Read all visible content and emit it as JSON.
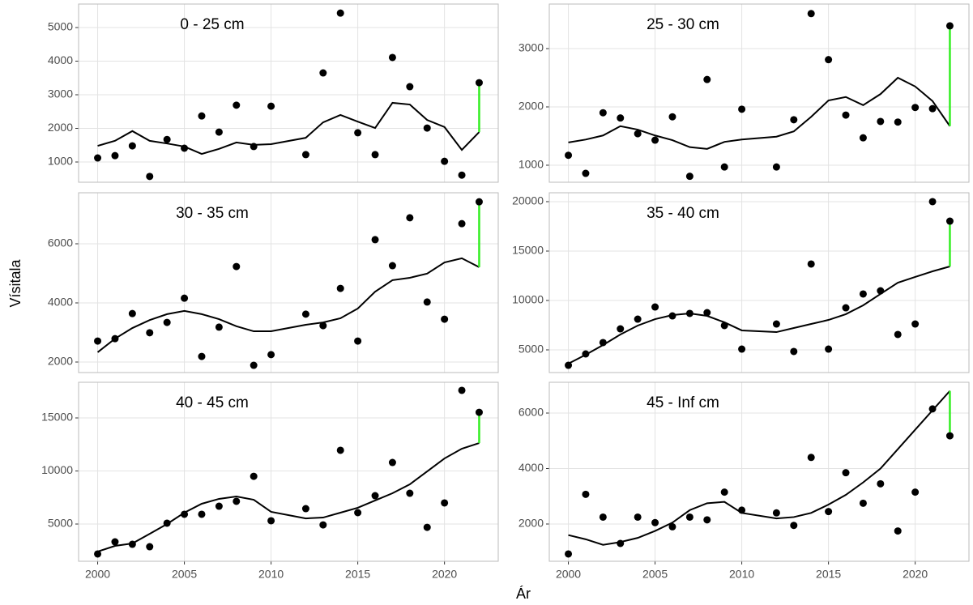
{
  "x_label": "Ár",
  "y_label": "Vísitala",
  "chart_data": [
    {
      "type": "scatter_fit",
      "title": "0 - 25 cm",
      "x": [
        2000,
        2001,
        2002,
        2003,
        2004,
        2005,
        2006,
        2007,
        2008,
        2009,
        2010,
        2012,
        2013,
        2014,
        2015,
        2016,
        2017,
        2018,
        2019,
        2020,
        2021,
        2022
      ],
      "values": [
        1120,
        1190,
        1480,
        570,
        1670,
        1410,
        2370,
        1890,
        2690,
        1460,
        2660,
        1220,
        3650,
        5430,
        1870,
        1220,
        4110,
        3240,
        2010,
        1020,
        610,
        3360
      ],
      "fit": [
        1480,
        1630,
        1920,
        1630,
        1550,
        1460,
        1240,
        1390,
        1580,
        1510,
        1530,
        1720,
        2180,
        2400,
        2200,
        2010,
        2760,
        2710,
        2250,
        2040,
        1360,
        1890
      ],
      "xlim": [
        1998.9,
        2023.1
      ],
      "xticks": [
        2000,
        2005,
        2010,
        2015,
        2020
      ],
      "ylim": [
        398,
        5699
      ],
      "yticks": [
        1000,
        2000,
        3000,
        4000,
        5000
      ],
      "point_color": "#000000",
      "line_color": "#000000",
      "diff_color": "#33ee22",
      "grid": true
    },
    {
      "type": "scatter_fit",
      "title": "25 - 30 cm",
      "x": [
        2000,
        2001,
        2002,
        2003,
        2004,
        2005,
        2006,
        2007,
        2008,
        2009,
        2010,
        2012,
        2013,
        2014,
        2015,
        2016,
        2017,
        2018,
        2019,
        2020,
        2021,
        2022
      ],
      "values": [
        1170,
        860,
        1900,
        1810,
        1540,
        1430,
        1830,
        810,
        2470,
        970,
        1960,
        970,
        1780,
        3600,
        2810,
        1860,
        1470,
        1750,
        1740,
        1990,
        1970,
        3390
      ],
      "fit": [
        1390,
        1440,
        1510,
        1670,
        1610,
        1510,
        1430,
        1310,
        1280,
        1400,
        1440,
        1490,
        1580,
        1830,
        2110,
        2170,
        2030,
        2220,
        2500,
        2350,
        2100,
        1670
      ],
      "xlim": [
        1998.9,
        2023.1
      ],
      "xticks": [
        2000,
        2005,
        2010,
        2015,
        2020
      ],
      "ylim": [
        708,
        3764
      ],
      "yticks": [
        1000,
        2000,
        3000
      ],
      "point_color": "#000000",
      "line_color": "#000000",
      "diff_color": "#33ee22",
      "grid": true
    },
    {
      "type": "scatter_fit",
      "title": "30 - 35 cm",
      "x": [
        2000,
        2001,
        2002,
        2003,
        2004,
        2005,
        2006,
        2007,
        2008,
        2009,
        2010,
        2012,
        2013,
        2014,
        2015,
        2016,
        2017,
        2018,
        2019,
        2020,
        2021,
        2022
      ],
      "values": [
        2710,
        2790,
        3640,
        2990,
        3340,
        4160,
        2190,
        3180,
        5230,
        1890,
        2250,
        3620,
        3230,
        4490,
        2710,
        6140,
        5260,
        6880,
        4030,
        3450,
        6680,
        7420
      ],
      "fit": [
        2330,
        2790,
        3150,
        3420,
        3620,
        3730,
        3620,
        3450,
        3210,
        3040,
        3040,
        3260,
        3340,
        3480,
        3810,
        4380,
        4770,
        4850,
        4990,
        5370,
        5510,
        5210
      ],
      "xlim": [
        1998.9,
        2023.1
      ],
      "xticks": [
        2000,
        2005,
        2010,
        2015,
        2020
      ],
      "ylim": [
        1644,
        7726
      ],
      "yticks": [
        2000,
        4000,
        6000
      ],
      "point_color": "#000000",
      "line_color": "#000000",
      "diff_color": "#33ee22",
      "grid": true
    },
    {
      "type": "scatter_fit",
      "title": "35 - 40 cm",
      "x": [
        2000,
        2001,
        2002,
        2003,
        2004,
        2005,
        2006,
        2007,
        2008,
        2009,
        2010,
        2012,
        2013,
        2014,
        2015,
        2016,
        2017,
        2018,
        2019,
        2020,
        2021,
        2022
      ],
      "values": [
        3440,
        4590,
        5740,
        7130,
        8110,
        9340,
        8440,
        8690,
        8770,
        7460,
        5080,
        7620,
        4840,
        13690,
        5080,
        9260,
        10660,
        10980,
        6560,
        7620,
        20000,
        18030
      ],
      "fit": [
        3610,
        4510,
        5490,
        6560,
        7460,
        8110,
        8520,
        8690,
        8440,
        7790,
        6970,
        6800,
        7210,
        7620,
        8030,
        8610,
        9510,
        10660,
        11800,
        12380,
        12950,
        13440
      ],
      "xlim": [
        1998.9,
        2023.1
      ],
      "xticks": [
        2000,
        2005,
        2010,
        2015,
        2020
      ],
      "ylim": [
        2705,
        20900
      ],
      "yticks": [
        5000,
        10000,
        15000,
        20000
      ],
      "point_color": "#000000",
      "line_color": "#000000",
      "diff_color": "#33ee22",
      "grid": true
    },
    {
      "type": "scatter_fit",
      "title": "40 - 45 cm",
      "x": [
        2000,
        2001,
        2002,
        2003,
        2004,
        2005,
        2006,
        2007,
        2008,
        2009,
        2010,
        2012,
        2013,
        2014,
        2015,
        2016,
        2017,
        2018,
        2019,
        2020,
        2021,
        2022
      ],
      "values": [
        2180,
        3320,
        3090,
        2860,
        5080,
        5920,
        5920,
        6680,
        7140,
        9500,
        5310,
        6450,
        4920,
        11950,
        6070,
        7670,
        10800,
        7900,
        4690,
        6990,
        17600,
        15530
      ],
      "fit": [
        2400,
        2940,
        3170,
        4080,
        5000,
        6070,
        6910,
        7370,
        7600,
        7290,
        6150,
        5530,
        5610,
        6070,
        6530,
        7220,
        7900,
        8740,
        9960,
        11180,
        12100,
        12630
      ],
      "xlim": [
        1998.9,
        2023.1
      ],
      "xticks": [
        2000,
        2005,
        2010,
        2015,
        2020
      ],
      "ylim": [
        1490,
        18360
      ],
      "yticks": [
        5000,
        10000,
        15000
      ],
      "point_color": "#000000",
      "line_color": "#000000",
      "diff_color": "#33ee22",
      "grid": true
    },
    {
      "type": "scatter_fit",
      "title": "45 - Inf cm",
      "x": [
        2000,
        2001,
        2002,
        2003,
        2004,
        2005,
        2006,
        2007,
        2008,
        2009,
        2010,
        2012,
        2013,
        2014,
        2015,
        2016,
        2017,
        2018,
        2019,
        2020,
        2021,
        2022
      ],
      "values": [
        920,
        3070,
        2250,
        1300,
        2250,
        2050,
        1900,
        2250,
        2150,
        3150,
        2500,
        2400,
        1950,
        4400,
        2450,
        3850,
        2750,
        3450,
        1750,
        3150,
        6150,
        5180
      ],
      "fit": [
        1600,
        1450,
        1250,
        1350,
        1500,
        1750,
        2050,
        2500,
        2750,
        2800,
        2400,
        2200,
        2250,
        2400,
        2700,
        3050,
        3500,
        4000,
        4700,
        5400,
        6100,
        6800
      ],
      "xlim": [
        1998.9,
        2023.1
      ],
      "xticks": [
        2000,
        2005,
        2010,
        2015,
        2020
      ],
      "ylim": [
        657,
        7110
      ],
      "yticks": [
        2000,
        4000,
        6000
      ],
      "point_color": "#000000",
      "line_color": "#000000",
      "diff_color": "#33ee22",
      "grid": true
    }
  ]
}
